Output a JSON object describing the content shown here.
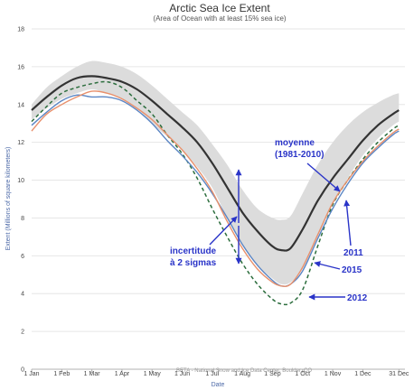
{
  "chart_data": {
    "type": "line",
    "title": "Arctic Sea Ice Extent",
    "subtitle": "(Area of Ocean with at least 15% sea ice)",
    "xlabel": "Date",
    "ylabel": "Extent (Millions of square kilometers)",
    "xlim": [
      0,
      12.4
    ],
    "ylim": [
      0,
      18
    ],
    "yticks": [
      0,
      2,
      4,
      6,
      8,
      10,
      12,
      14,
      16,
      18
    ],
    "xticks": [
      {
        "label": "1 Jan",
        "m": 0
      },
      {
        "label": "1 Feb",
        "m": 1
      },
      {
        "label": "1 Mar",
        "m": 2
      },
      {
        "label": "1 Apr",
        "m": 3
      },
      {
        "label": "1 May",
        "m": 4
      },
      {
        "label": "1 Jun",
        "m": 5
      },
      {
        "label": "1 Jul",
        "m": 6
      },
      {
        "label": "1 Aug",
        "m": 7
      },
      {
        "label": "1 Sep",
        "m": 8
      },
      {
        "label": "1 Oct",
        "m": 9
      },
      {
        "label": "1 Nov",
        "m": 10
      },
      {
        "label": "1 Dec",
        "m": 11
      },
      {
        "label": "31 Dec",
        "m": 12.2
      }
    ],
    "band": {
      "name": "2 sigma",
      "x": [
        0,
        0.5,
        1,
        1.5,
        2,
        2.5,
        3,
        3.5,
        4,
        4.5,
        5,
        5.5,
        6,
        6.5,
        7,
        7.5,
        8,
        8.3,
        8.6,
        9,
        9.5,
        10,
        10.5,
        11,
        11.5,
        12,
        12.2
      ],
      "upper": [
        14.0,
        14.9,
        15.5,
        16.0,
        16.3,
        16.2,
        16.0,
        15.6,
        15.0,
        14.3,
        13.6,
        12.9,
        11.9,
        10.8,
        9.5,
        8.5,
        8.0,
        7.9,
        8.1,
        9.3,
        10.8,
        12.0,
        12.9,
        13.6,
        14.1,
        14.5,
        14.6
      ],
      "lower": [
        13.2,
        13.8,
        14.3,
        14.6,
        14.8,
        14.6,
        14.3,
        13.8,
        13.0,
        12.3,
        11.6,
        10.7,
        9.6,
        8.0,
        6.6,
        5.5,
        4.8,
        4.5,
        4.6,
        5.3,
        7.0,
        8.7,
        10.1,
        11.3,
        12.2,
        12.9,
        13.1
      ]
    },
    "series": [
      {
        "name": "moyenne (1981-2010)",
        "color": "#333333",
        "style": "solid",
        "x": [
          0,
          0.5,
          1,
          1.5,
          2,
          2.5,
          3,
          3.5,
          4,
          4.5,
          5,
          5.5,
          6,
          6.5,
          7,
          7.5,
          8,
          8.3,
          8.6,
          9,
          9.5,
          10,
          10.5,
          11,
          11.5,
          12,
          12.2
        ],
        "values": [
          13.7,
          14.4,
          15.0,
          15.4,
          15.5,
          15.4,
          15.2,
          14.8,
          14.2,
          13.5,
          12.8,
          12.0,
          10.9,
          9.6,
          8.3,
          7.3,
          6.5,
          6.3,
          6.4,
          7.4,
          8.9,
          10.1,
          11.1,
          12.1,
          12.9,
          13.5,
          13.7
        ]
      },
      {
        "name": "2011",
        "color": "#e8906c",
        "style": "solid",
        "x": [
          0,
          0.5,
          1,
          1.5,
          2,
          2.5,
          3,
          3.5,
          4,
          4.5,
          5,
          5.5,
          6,
          6.5,
          7,
          7.5,
          8,
          8.3,
          8.6,
          9,
          9.5,
          10,
          10.5,
          11,
          11.5,
          12,
          12.2
        ],
        "values": [
          12.6,
          13.5,
          14.0,
          14.4,
          14.7,
          14.6,
          14.3,
          13.8,
          13.2,
          12.4,
          11.6,
          10.6,
          9.4,
          7.8,
          6.4,
          5.3,
          4.6,
          4.4,
          4.5,
          5.4,
          7.1,
          8.8,
          10.0,
          11.0,
          11.8,
          12.5,
          12.7
        ]
      },
      {
        "name": "2015",
        "color": "#5b86c4",
        "style": "solid",
        "x": [
          0,
          0.5,
          1,
          1.5,
          2,
          2.5,
          3,
          3.5,
          4,
          4.5,
          5,
          5.5,
          6,
          6.5,
          7,
          7.5,
          8,
          8.3,
          8.6,
          9,
          9.5,
          10,
          10.5,
          11,
          11.5,
          12,
          12.2
        ],
        "values": [
          12.9,
          13.6,
          14.2,
          14.5,
          14.4,
          14.4,
          14.2,
          13.7,
          13.0,
          12.1,
          11.3,
          10.4,
          9.3,
          8.0,
          6.6,
          5.5,
          4.7,
          4.4,
          4.5,
          5.2,
          6.9,
          8.5,
          9.8,
          10.9,
          11.7,
          12.4,
          12.6
        ]
      },
      {
        "name": "2012",
        "color": "#2d6e3e",
        "style": "dashed",
        "x": [
          0,
          0.5,
          1,
          1.5,
          2,
          2.5,
          3,
          3.5,
          4,
          4.5,
          5,
          5.5,
          6,
          6.5,
          7,
          7.5,
          8,
          8.3,
          8.6,
          9,
          9.5,
          10,
          10.5,
          11,
          11.5,
          12,
          12.2
        ],
        "values": [
          13.1,
          13.9,
          14.6,
          14.9,
          15.1,
          15.2,
          14.9,
          14.2,
          13.5,
          12.4,
          11.4,
          10.1,
          8.5,
          7.0,
          5.6,
          4.5,
          3.7,
          3.45,
          3.5,
          4.2,
          6.5,
          8.7,
          10.0,
          11.1,
          12.0,
          12.7,
          12.9
        ]
      }
    ],
    "annotations": {
      "mean": {
        "line1": "moyenne",
        "line2": "(1981-2010)"
      },
      "sigma": {
        "line1": "incertitude",
        "line2": "à 2 sigmas"
      },
      "y2011": "2011",
      "y2015": "2015",
      "y2012": "2012"
    },
    "credit": "BETA - National Snow and Ice Data Center, Boulder, CO"
  }
}
